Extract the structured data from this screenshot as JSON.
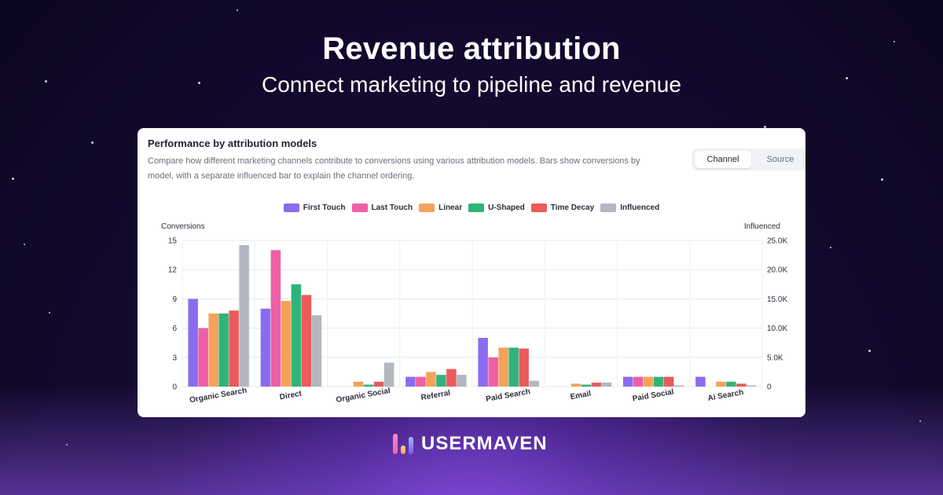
{
  "hero": {
    "title": "Revenue attribution",
    "subtitle": "Connect marketing to pipeline and revenue"
  },
  "card": {
    "title": "Performance by attribution models",
    "description": "Compare how different marketing channels contribute to conversions using various attribution models. Bars show conversions by model, with a separate influenced bar to explain the channel ordering.",
    "toggle": {
      "active": "Channel",
      "inactive": "Source"
    }
  },
  "brand": {
    "name": "USERMAVEN",
    "logo_icon": "usermaven-logo-icon"
  },
  "chart_data": {
    "type": "bar",
    "categories": [
      "Organic Search",
      "Direct",
      "Organic Social",
      "Referral",
      "Paid Search",
      "Email",
      "Paid Social",
      "Ai Search"
    ],
    "ylabel": "Conversions",
    "y2label": "Influenced",
    "ylim": [
      0,
      15
    ],
    "yticks": [
      "0",
      "3",
      "6",
      "9",
      "12",
      "15"
    ],
    "y2lim": [
      0,
      25000
    ],
    "y2ticks": [
      "0",
      "5.0K",
      "10.0K",
      "15.0K",
      "20.0K",
      "25.0K"
    ],
    "grid": true,
    "legend": "top-center",
    "series": [
      {
        "name": "First Touch",
        "color": "#8b6cf0",
        "axis": "left",
        "values": [
          9,
          8,
          0,
          1,
          5,
          0,
          1,
          1
        ]
      },
      {
        "name": "Last Touch",
        "color": "#ee5fa5",
        "axis": "left",
        "values": [
          6,
          14,
          0,
          1,
          3,
          0,
          1,
          0
        ]
      },
      {
        "name": "Linear",
        "color": "#f6a25a",
        "axis": "left",
        "values": [
          7.5,
          8.8,
          0.5,
          1.5,
          4,
          0.3,
          1,
          0.5
        ]
      },
      {
        "name": "U-Shaped",
        "color": "#2fb37b",
        "axis": "left",
        "values": [
          7.5,
          10.5,
          0.2,
          1.2,
          4,
          0.2,
          1,
          0.5
        ]
      },
      {
        "name": "Time Decay",
        "color": "#ec5a5a",
        "axis": "left",
        "values": [
          7.8,
          9.4,
          0.5,
          1.8,
          3.9,
          0.4,
          1,
          0.3
        ]
      },
      {
        "name": "Influenced",
        "color": "#b2b7c0",
        "axis": "right",
        "values": [
          24200,
          12200,
          4100,
          2000,
          1000,
          700,
          200,
          200
        ]
      }
    ]
  }
}
